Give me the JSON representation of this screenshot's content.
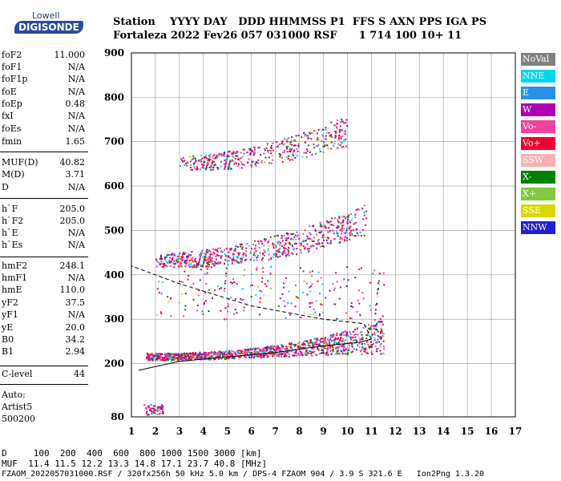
{
  "logo": {
    "top": "Lowell",
    "main": "DIGISONDE"
  },
  "header": {
    "line1": "Station    YYYY DAY   DDD HHMMSS P1  FFS S AXN PPS IGA PS",
    "line2": "Fortaleza 2022 Fev26 057 031000 RSF      1 714 100 10+ 11"
  },
  "params": [
    {
      "label": "foF2",
      "value": "11.000"
    },
    {
      "label": "foF1",
      "value": "N/A"
    },
    {
      "label": "foF1p",
      "value": "N/A"
    },
    {
      "label": "foE",
      "value": "N/A"
    },
    {
      "label": "foEp",
      "value": "0.48"
    },
    {
      "label": "fxI",
      "value": "N/A"
    },
    {
      "label": "foEs",
      "value": "N/A"
    },
    {
      "label": "fmin",
      "value": "1.65"
    },
    {
      "label": "MUF(D)",
      "value": "40.82"
    },
    {
      "label": "M(D)",
      "value": "3.71"
    },
    {
      "label": "D",
      "value": "N/A"
    },
    {
      "label": "h`F",
      "value": "205.0"
    },
    {
      "label": "h`F2",
      "value": "205.0"
    },
    {
      "label": "h`E",
      "value": "N/A"
    },
    {
      "label": "h`Es",
      "value": "N/A"
    },
    {
      "label": "hmF2",
      "value": "248.1"
    },
    {
      "label": "hmF1",
      "value": "N/A"
    },
    {
      "label": "hmE",
      "value": "110.0"
    },
    {
      "label": "yF2",
      "value": "37.5"
    },
    {
      "label": "yF1",
      "value": "N/A"
    },
    {
      "label": "yE",
      "value": "20.0"
    },
    {
      "label": "B0",
      "value": "34.2"
    },
    {
      "label": "B1",
      "value": "2.94"
    },
    {
      "label": "C-level",
      "value": "44"
    }
  ],
  "auto": {
    "title": "Auto:",
    "name": "Artist5",
    "version": "500200"
  },
  "legend": [
    {
      "label": "NoVal",
      "color": "#808080"
    },
    {
      "label": "NNE",
      "color": "#00d8f0"
    },
    {
      "label": "E",
      "color": "#2a90e8"
    },
    {
      "label": "W",
      "color": "#b000b0"
    },
    {
      "label": "Vo-",
      "color": "#f040a0"
    },
    {
      "label": "Vo+",
      "color": "#f00030"
    },
    {
      "label": "SSW",
      "color": "#f8b0b0"
    },
    {
      "label": "X-",
      "color": "#008000"
    },
    {
      "label": "X+",
      "color": "#80c840"
    },
    {
      "label": "SSE",
      "color": "#d8d800"
    },
    {
      "label": "NNW",
      "color": "#2020d0"
    }
  ],
  "chart_data": {
    "type": "scatter",
    "xlim": [
      1,
      17
    ],
    "ylim": [
      80,
      900
    ],
    "x_ticks": [
      1,
      2,
      3,
      4,
      5,
      6,
      7,
      8,
      9,
      10,
      11,
      12,
      13,
      14,
      15,
      16,
      17
    ],
    "y_ticks": [
      80,
      200,
      300,
      400,
      500,
      600,
      700,
      800,
      900
    ],
    "grid": true,
    "traces": [
      {
        "name": "F trace 1x",
        "x_range": [
          1.6,
          11.5
        ],
        "y_start": 215,
        "y_end": 255
      },
      {
        "name": "F trace 2x",
        "x_range": [
          2.0,
          10.8
        ],
        "y_start": 430,
        "y_end": 520
      },
      {
        "name": "F trace 3x",
        "x_range": [
          3.0,
          10.0
        ],
        "y_start": 650,
        "y_end": 720
      }
    ],
    "profile_curve": [
      [
        1.3,
        185
      ],
      [
        3,
        205
      ],
      [
        5,
        215
      ],
      [
        7,
        225
      ],
      [
        9,
        240
      ],
      [
        10.5,
        248
      ],
      [
        11,
        255
      ],
      [
        10.7,
        290
      ],
      [
        9,
        300
      ],
      [
        6,
        330
      ],
      [
        3,
        380
      ],
      [
        1,
        420
      ]
    ]
  },
  "bottom": {
    "line1": "D     100  200  400  600  800 1000 1500 3000 [km]",
    "line2": "MUF  11.4 11.5 12.2 13.3 14.8 17.1 23.7 40.8 [MHz]",
    "line3": "FZAOM_2022057031000.RSF / 320fx256h 50 kHz 5.0 km / DPS-4 FZAOM 904 / 3.9 S 321.6 E   Ion2Png 1.3.20"
  }
}
